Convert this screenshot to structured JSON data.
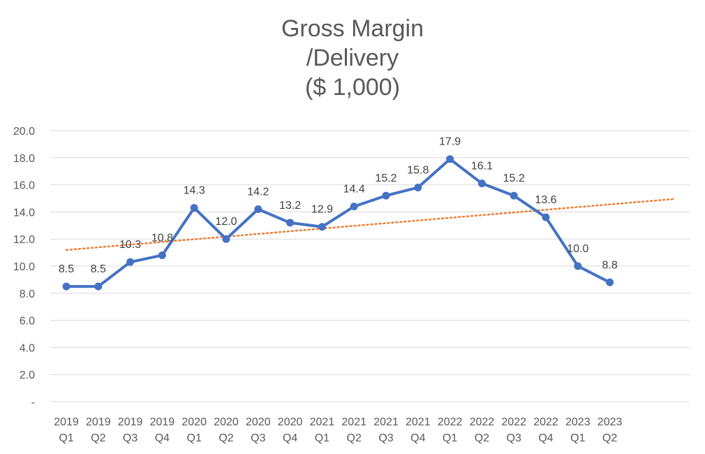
{
  "chart_data": {
    "type": "line",
    "title_lines": [
      "Gross Margin",
      "/Delivery",
      "($ 1,000)"
    ],
    "categories": [
      [
        "2019",
        "Q1"
      ],
      [
        "2019",
        "Q2"
      ],
      [
        "2019",
        "Q3"
      ],
      [
        "2019",
        "Q4"
      ],
      [
        "2020",
        "Q1"
      ],
      [
        "2020",
        "Q2"
      ],
      [
        "2020",
        "Q3"
      ],
      [
        "2020",
        "Q4"
      ],
      [
        "2021",
        "Q1"
      ],
      [
        "2021",
        "Q2"
      ],
      [
        "2021",
        "Q3"
      ],
      [
        "2021",
        "Q4"
      ],
      [
        "2022",
        "Q1"
      ],
      [
        "2022",
        "Q2"
      ],
      [
        "2022",
        "Q3"
      ],
      [
        "2022",
        "Q4"
      ],
      [
        "2023",
        "Q1"
      ],
      [
        "2023",
        "Q2"
      ]
    ],
    "series": [
      {
        "values": [
          8.5,
          8.5,
          10.3,
          10.8,
          14.3,
          12.0,
          14.2,
          13.2,
          12.9,
          14.4,
          15.2,
          15.8,
          17.9,
          16.1,
          15.2,
          13.6,
          10.0,
          8.8
        ],
        "labels": [
          "8.5",
          "8.5",
          "10.3",
          "10.8",
          "14.3",
          "12.0",
          "14.2",
          "13.2",
          "12.9",
          "14.4",
          "15.2",
          "15.8",
          "17.9",
          "16.1",
          "15.2",
          "13.6",
          "10.0",
          "8.8"
        ],
        "color": "#4472C4"
      }
    ],
    "trendline": {
      "type": "linear",
      "color": "#ED7D31",
      "style": "dotted"
    },
    "ylim": [
      0,
      20
    ],
    "yticks": [
      0,
      2,
      4,
      6,
      8,
      10,
      12,
      14,
      16,
      18,
      20
    ],
    "ytick_labels": [
      "-",
      "2.0",
      "4.0",
      "6.0",
      "8.0",
      "10.0",
      "12.0",
      "14.0",
      "16.0",
      "18.0",
      "20.0"
    ],
    "grid": true,
    "gridline_color": "#d9d9d9",
    "legend": "none"
  }
}
